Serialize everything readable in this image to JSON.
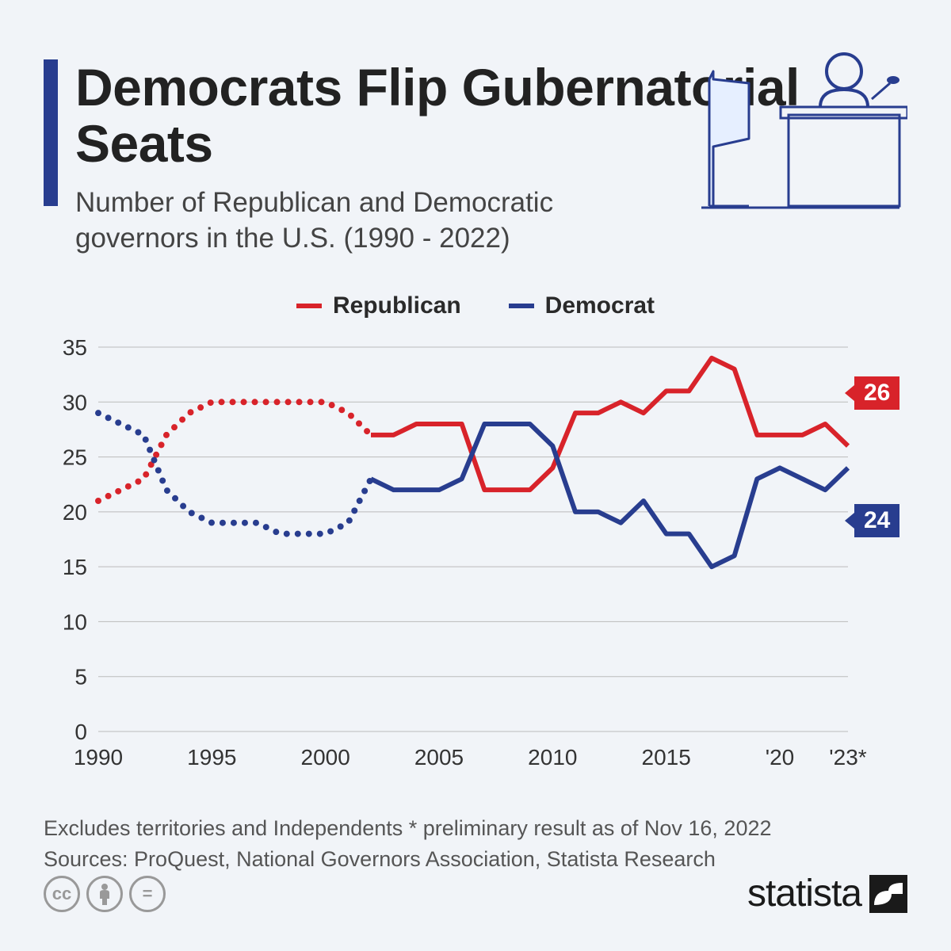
{
  "title": "Democrats Flip Gubernatorial Seats",
  "subtitle": "Number of Republican and Democratic governors in the U.S. (1990 - 2022)",
  "legend": {
    "republican": "Republican",
    "democrat": "Democrat"
  },
  "colors": {
    "republican": "#d8232a",
    "democrat": "#283d8f",
    "accent_bar": "#283d8f",
    "background": "#f1f4f8",
    "grid": "#bbbbbb",
    "text": "#2a2a2a"
  },
  "chart": {
    "type": "line",
    "ylim": [
      0,
      35
    ],
    "yticks": [
      0,
      5,
      10,
      15,
      20,
      25,
      30,
      35
    ],
    "xlim": [
      1990,
      2023
    ],
    "xticks": [
      {
        "val": 1990,
        "label": "1990"
      },
      {
        "val": 1995,
        "label": "1995"
      },
      {
        "val": 2000,
        "label": "2000"
      },
      {
        "val": 2005,
        "label": "2005"
      },
      {
        "val": 2010,
        "label": "2010"
      },
      {
        "val": 2015,
        "label": "2015"
      },
      {
        "val": 2020,
        "label": "'20"
      },
      {
        "val": 2023,
        "label": "'23*"
      }
    ],
    "dotted_before_year": 2002,
    "line_width": 6,
    "series": {
      "republican": [
        {
          "y": 1990,
          "v": 21
        },
        {
          "y": 1991,
          "v": 22
        },
        {
          "y": 1992,
          "v": 23
        },
        {
          "y": 1993,
          "v": 27
        },
        {
          "y": 1994,
          "v": 29
        },
        {
          "y": 1995,
          "v": 30
        },
        {
          "y": 1996,
          "v": 30
        },
        {
          "y": 1997,
          "v": 30
        },
        {
          "y": 1998,
          "v": 30
        },
        {
          "y": 1999,
          "v": 30
        },
        {
          "y": 2000,
          "v": 30
        },
        {
          "y": 2001,
          "v": 29
        },
        {
          "y": 2002,
          "v": 27
        },
        {
          "y": 2003,
          "v": 27
        },
        {
          "y": 2004,
          "v": 28
        },
        {
          "y": 2005,
          "v": 28
        },
        {
          "y": 2006,
          "v": 28
        },
        {
          "y": 2007,
          "v": 22
        },
        {
          "y": 2008,
          "v": 22
        },
        {
          "y": 2009,
          "v": 22
        },
        {
          "y": 2010,
          "v": 24
        },
        {
          "y": 2011,
          "v": 29
        },
        {
          "y": 2012,
          "v": 29
        },
        {
          "y": 2013,
          "v": 30
        },
        {
          "y": 2014,
          "v": 29
        },
        {
          "y": 2015,
          "v": 31
        },
        {
          "y": 2016,
          "v": 31
        },
        {
          "y": 2017,
          "v": 34
        },
        {
          "y": 2018,
          "v": 33
        },
        {
          "y": 2019,
          "v": 27
        },
        {
          "y": 2020,
          "v": 27
        },
        {
          "y": 2021,
          "v": 27
        },
        {
          "y": 2022,
          "v": 28
        },
        {
          "y": 2023,
          "v": 26
        }
      ],
      "democrat": [
        {
          "y": 1990,
          "v": 29
        },
        {
          "y": 1991,
          "v": 28
        },
        {
          "y": 1992,
          "v": 27
        },
        {
          "y": 1993,
          "v": 22
        },
        {
          "y": 1994,
          "v": 20
        },
        {
          "y": 1995,
          "v": 19
        },
        {
          "y": 1996,
          "v": 19
        },
        {
          "y": 1997,
          "v": 19
        },
        {
          "y": 1998,
          "v": 18
        },
        {
          "y": 1999,
          "v": 18
        },
        {
          "y": 2000,
          "v": 18
        },
        {
          "y": 2001,
          "v": 19
        },
        {
          "y": 2002,
          "v": 23
        },
        {
          "y": 2003,
          "v": 22
        },
        {
          "y": 2004,
          "v": 22
        },
        {
          "y": 2005,
          "v": 22
        },
        {
          "y": 2006,
          "v": 23
        },
        {
          "y": 2007,
          "v": 28
        },
        {
          "y": 2008,
          "v": 28
        },
        {
          "y": 2009,
          "v": 28
        },
        {
          "y": 2010,
          "v": 26
        },
        {
          "y": 2011,
          "v": 20
        },
        {
          "y": 2012,
          "v": 20
        },
        {
          "y": 2013,
          "v": 19
        },
        {
          "y": 2014,
          "v": 21
        },
        {
          "y": 2015,
          "v": 18
        },
        {
          "y": 2016,
          "v": 18
        },
        {
          "y": 2017,
          "v": 15
        },
        {
          "y": 2018,
          "v": 16
        },
        {
          "y": 2019,
          "v": 23
        },
        {
          "y": 2020,
          "v": 24
        },
        {
          "y": 2021,
          "v": 23
        },
        {
          "y": 2022,
          "v": 22
        },
        {
          "y": 2023,
          "v": 24
        }
      ]
    },
    "end_labels": {
      "republican": "26",
      "democrat": "24"
    }
  },
  "footnote1": "Excludes territories and Independents    * preliminary result as of Nov 16, 2022",
  "footnote2": "Sources: ProQuest, National Governors Association, Statista Research",
  "brand": "statista"
}
